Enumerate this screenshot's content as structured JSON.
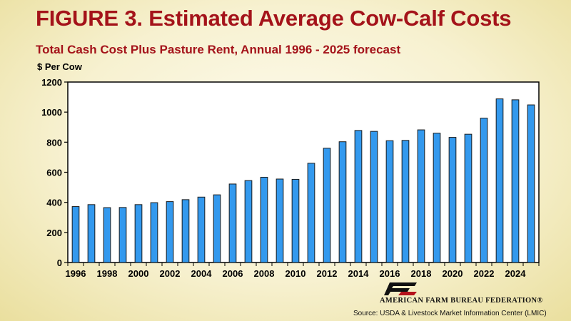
{
  "header": {
    "title": "FIGURE 3. Estimated Average Cow-Calf Costs",
    "subtitle": "Total Cash Cost Plus Pasture Rent, Annual 1996 - 2025 forecast"
  },
  "footer": {
    "logo_text": "AMERICAN FARM BUREAU FEDERATION®",
    "source": "Source:  USDA & Livestock Market Information Center (LMIC)"
  },
  "colors": {
    "title": "#a4131a",
    "bar_fill": "#3399ee",
    "bar_stroke": "#1a1a1a"
  },
  "chart_data": {
    "type": "bar",
    "title": "FIGURE 3. Estimated Average Cow-Calf Costs",
    "subtitle": "Total Cash Cost Plus Pasture Rent, Annual 1996 - 2025 forecast",
    "xlabel": "",
    "ylabel": "$ Per Cow",
    "ylim": [
      0,
      1200
    ],
    "yticks": [
      "0",
      "200",
      "400",
      "600",
      "800",
      "1000",
      "1200"
    ],
    "xtick_labels": [
      "1996",
      "1998",
      "2000",
      "2002",
      "2004",
      "2006",
      "2008",
      "2010",
      "2012",
      "2014",
      "2016",
      "2018",
      "2020",
      "2022",
      "2024"
    ],
    "categories": [
      1996,
      1997,
      1998,
      1999,
      2000,
      2001,
      2002,
      2003,
      2004,
      2005,
      2006,
      2007,
      2008,
      2009,
      2010,
      2011,
      2012,
      2013,
      2014,
      2015,
      2016,
      2017,
      2018,
      2019,
      2020,
      2021,
      2022,
      2023,
      2024,
      2025
    ],
    "values": [
      372,
      385,
      365,
      366,
      385,
      398,
      405,
      418,
      435,
      450,
      522,
      545,
      567,
      555,
      553,
      660,
      760,
      803,
      878,
      872,
      810,
      812,
      882,
      860,
      832,
      853,
      960,
      1088,
      1082,
      1048
    ],
    "grid": false,
    "legend": "none"
  }
}
